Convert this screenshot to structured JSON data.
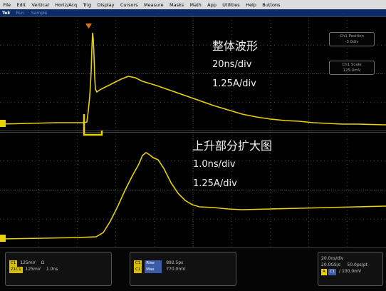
{
  "menu": [
    "File",
    "Edit",
    "Vertical",
    "Horiz/Acq",
    "Trig",
    "Display",
    "Cursors",
    "Measure",
    "Masks",
    "Math",
    "App",
    "Utilities",
    "Help",
    "Buttons"
  ],
  "status": {
    "brand": "Tek",
    "run": "Run",
    "mode": "Sample"
  },
  "annotations": {
    "top_title": "整体波形",
    "top_time": "20ns/div",
    "top_amp": "1.25A/div",
    "bot_title": "上升部分扩大图",
    "bot_time": "1.0ns/div",
    "bot_amp": "1.25A/div"
  },
  "right_boxes": {
    "position": {
      "label": "Ch1 Position",
      "value": "-3.0div"
    },
    "scale": {
      "label": "Ch1 Scale",
      "value": "125.0mV"
    }
  },
  "bottom_left": {
    "row1": {
      "tag": "C1",
      "value": "125mV",
      "unit": "Ω"
    },
    "row2": {
      "tag": "Z1C1",
      "value": "125mV",
      "time": "1.0ns"
    }
  },
  "bottom_mid": {
    "row1": {
      "tag": "C1",
      "label": "Rise",
      "value": "892.5ps"
    },
    "row2": {
      "tag": "C1",
      "label": "Max",
      "value": "770.0mV"
    }
  },
  "bottom_right": {
    "line1": "20.0ns/div",
    "line2": "20.0GS/s     50.0ps/pt",
    "line3": {
      "tag": "A",
      "trig": "C1",
      "text": "/ 100.0mV"
    }
  },
  "colors": {
    "trace": "#e8d200",
    "grid": "#5a5a5a",
    "marker": "#e8d200"
  }
}
